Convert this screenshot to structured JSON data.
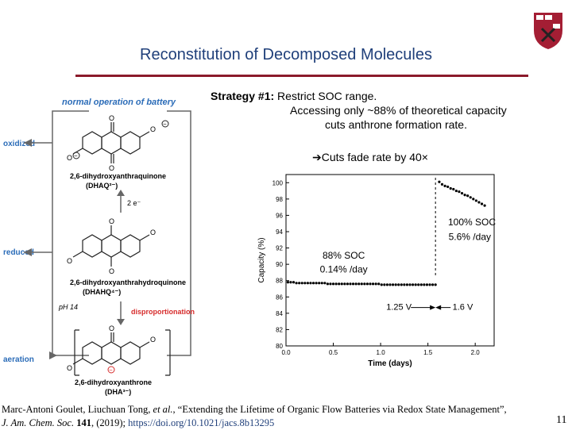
{
  "slide": {
    "title": "Reconstitution of Decomposed Molecules",
    "strategy_label": "Strategy #1:",
    "strategy_line1": " Restrict SOC range.",
    "strategy_line2": "Accessing only ~88% of theoretical capacity",
    "strategy_line3": "cuts anthrone formation rate.",
    "fade_note": "➔Cuts fade rate by 40×",
    "page_number": "11",
    "citation": {
      "authors": "Marc-Antoni Goulet, Liuchuan Tong, ",
      "etal": "et al.",
      "title_text": ", “Extending the Lifetime of Organic Flow Batteries via Redox State Management”,",
      "journal": "J. Am. Chem. Soc.",
      "volume": " 141",
      "year": ", (2019); ",
      "link": "https://doi.org/10.1021/jacs.8b13295"
    },
    "logo": {
      "shield_text": [
        "VE",
        "RI",
        "TAS"
      ],
      "colors": {
        "shield": "#a41e34",
        "text": "#ffffff"
      }
    }
  },
  "diagram": {
    "header": "normal operation of battery",
    "side_labels": {
      "oxidized": "oxidized",
      "reduced": "reduced",
      "aeration": "aeration"
    },
    "ph": "pH 14",
    "disproportionation": "disproportionation",
    "reduction_step": "2 e⁻",
    "molecules": [
      {
        "name": "2,6-dihydroxyanthraquinone",
        "abbr": "(DHAQ²⁻)"
      },
      {
        "name": "2,6-dihydroxyanthrahydroquinone",
        "abbr": "(DHAHQ⁴⁻)"
      },
      {
        "name": "2,6-dihydroxyanthrone",
        "abbr": "(DHA³⁻)"
      }
    ],
    "colors": {
      "blue_label": "#2b6cb8",
      "red_label": "#d62b2b",
      "arrow": "#666666"
    }
  },
  "chart_data": {
    "type": "scatter",
    "title": "",
    "xlabel": "Time (days)",
    "ylabel": "Capacity (%)",
    "xlim": [
      0.0,
      2.2
    ],
    "ylim": [
      80,
      101
    ],
    "xticks": [
      "0.0",
      "0.5",
      "1.0",
      "1.5",
      "2.0"
    ],
    "yticks": [
      "80",
      "82",
      "84",
      "86",
      "88",
      "90",
      "92",
      "94",
      "96",
      "98",
      "100"
    ],
    "series": [
      {
        "values_x": [
          0.02,
          0.05,
          0.08,
          0.11,
          0.14,
          0.17,
          0.2,
          0.23,
          0.26,
          0.29,
          0.32,
          0.35,
          0.38,
          0.41,
          0.44,
          0.47,
          0.5,
          0.53,
          0.56,
          0.59,
          0.62,
          0.65,
          0.68,
          0.71,
          0.74,
          0.77,
          0.8,
          0.83,
          0.86,
          0.89,
          0.92,
          0.95,
          0.98,
          1.01,
          1.04,
          1.07,
          1.1,
          1.13,
          1.16,
          1.19,
          1.22,
          1.25,
          1.28,
          1.31,
          1.34,
          1.37,
          1.4,
          1.43,
          1.46,
          1.49,
          1.52,
          1.55,
          1.58
        ],
        "values_y": [
          87.8,
          87.8,
          87.8,
          87.7,
          87.7,
          87.7,
          87.7,
          87.7,
          87.7,
          87.7,
          87.7,
          87.7,
          87.7,
          87.7,
          87.6,
          87.6,
          87.6,
          87.6,
          87.6,
          87.6,
          87.6,
          87.6,
          87.6,
          87.6,
          87.6,
          87.6,
          87.6,
          87.6,
          87.6,
          87.6,
          87.6,
          87.6,
          87.6,
          87.5,
          87.5,
          87.5,
          87.5,
          87.5,
          87.5,
          87.5,
          87.5,
          87.5,
          87.5,
          87.5,
          87.5,
          87.5,
          87.5,
          87.5,
          87.5,
          87.5,
          87.5,
          87.5,
          87.5
        ],
        "color": "#000000"
      },
      {
        "values_x": [
          1.62,
          1.65,
          1.68,
          1.71,
          1.74,
          1.77,
          1.8,
          1.83,
          1.86,
          1.89,
          1.92,
          1.95,
          1.98,
          2.01,
          2.04,
          2.07,
          2.1
        ],
        "values_y": [
          100.1,
          99.8,
          99.6,
          99.5,
          99.3,
          99.2,
          99.0,
          98.9,
          98.7,
          98.5,
          98.4,
          98.2,
          98.0,
          97.8,
          97.6,
          97.4,
          97.2
        ],
        "color": "#000000"
      }
    ],
    "annotations": {
      "high_soc": "100% SOC",
      "high_rate": "5.6% /day",
      "low_soc": "88% SOC",
      "low_rate": "0.14% /day",
      "v_low": "1.25 V",
      "v_high": "1.6 V"
    },
    "divider_x": 1.58,
    "grid": false
  }
}
